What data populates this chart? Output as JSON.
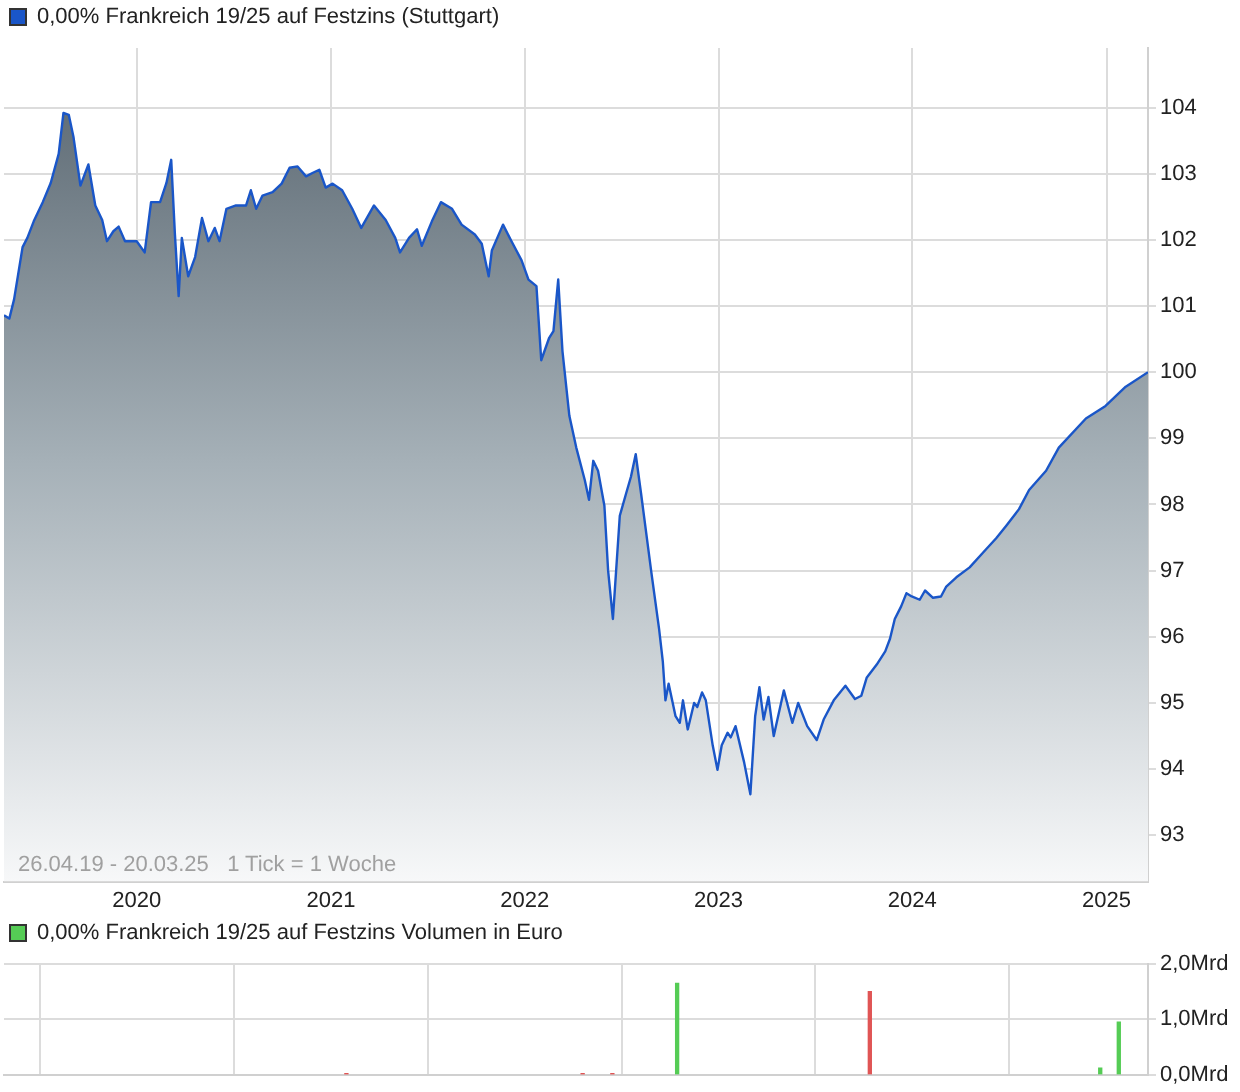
{
  "chart_data": [
    {
      "type": "area",
      "legend": "top left",
      "grid": true,
      "xlim": [
        "2019-04-26",
        "2025-03-20"
      ],
      "ylim": [
        92.3,
        104.9
      ],
      "xticks": [
        {
          "value": "2020-01-01",
          "label": "2020"
        },
        {
          "value": "2021-01-01",
          "label": "2021"
        },
        {
          "value": "2022-01-01",
          "label": "2022"
        },
        {
          "value": "2023-01-01",
          "label": "2023"
        },
        {
          "value": "2024-01-01",
          "label": "2024"
        },
        {
          "value": "2025-01-01",
          "label": "2025"
        }
      ],
      "yticks": [
        93,
        94,
        95,
        96,
        97,
        98,
        99,
        100,
        101,
        102,
        103,
        104
      ],
      "annotations": [
        "26.04.19 - 20.03.25   1 Tick = 1 Woche"
      ],
      "series": [
        {
          "name": "0,00% Frankreich 19/25 auf Festzins (Stuttgart)",
          "color": "#1a56c8",
          "x": [
            "2019-04-26",
            "2019-05-06",
            "2019-05-15",
            "2019-05-31",
            "2019-06-09",
            "2019-06-21",
            "2019-07-08",
            "2019-07-23",
            "2019-08-07",
            "2019-08-16",
            "2019-08-26",
            "2019-09-04",
            "2019-09-17",
            "2019-10-02",
            "2019-10-15",
            "2019-10-28",
            "2019-11-06",
            "2019-11-18",
            "2019-11-28",
            "2019-12-10",
            "2020-01-01",
            "2020-01-16",
            "2020-01-28",
            "2020-02-14",
            "2020-02-26",
            "2020-03-06",
            "2020-03-13",
            "2020-03-20",
            "2020-03-26",
            "2020-04-07",
            "2020-04-20",
            "2020-05-03",
            "2020-05-15",
            "2020-05-27",
            "2020-06-05",
            "2020-06-18",
            "2020-07-06",
            "2020-07-25",
            "2020-08-03",
            "2020-08-13",
            "2020-08-25",
            "2020-09-13",
            "2020-09-30",
            "2020-10-15",
            "2020-10-30",
            "2020-11-15",
            "2020-11-27",
            "2020-12-10",
            "2020-12-22",
            "2021-01-04",
            "2021-01-22",
            "2021-02-10",
            "2021-02-27",
            "2021-03-23",
            "2021-04-14",
            "2021-05-02",
            "2021-05-11",
            "2021-05-28",
            "2021-06-12",
            "2021-06-21",
            "2021-07-10",
            "2021-07-27",
            "2021-08-17",
            "2021-09-04",
            "2021-09-29",
            "2021-10-12",
            "2021-10-25",
            "2021-10-31",
            "2021-11-21",
            "2021-12-07",
            "2021-12-26",
            "2022-01-08",
            "2022-01-23",
            "2022-02-01",
            "2022-02-16",
            "2022-02-24",
            "2022-03-05",
            "2022-03-13",
            "2022-03-26",
            "2022-04-08",
            "2022-04-24",
            "2022-05-02",
            "2022-05-10",
            "2022-05-19",
            "2022-05-31",
            "2022-06-07",
            "2022-06-16",
            "2022-06-29",
            "2022-07-11",
            "2022-07-20",
            "2022-07-29",
            "2022-08-08",
            "2022-08-27",
            "2022-09-11",
            "2022-09-18",
            "2022-09-23",
            "2022-09-29",
            "2022-10-12",
            "2022-10-20",
            "2022-10-26",
            "2022-11-04",
            "2022-11-16",
            "2022-11-22",
            "2022-12-01",
            "2022-12-08",
            "2022-12-21",
            "2022-12-30",
            "2023-01-07",
            "2023-01-18",
            "2023-01-24",
            "2023-02-02",
            "2023-02-18",
            "2023-03-02",
            "2023-03-11",
            "2023-03-19",
            "2023-03-27",
            "2023-04-05",
            "2023-04-15",
            "2023-05-04",
            "2023-05-20",
            "2023-05-31",
            "2023-06-17",
            "2023-07-05",
            "2023-07-18",
            "2023-08-06",
            "2023-08-28",
            "2023-09-15",
            "2023-09-27",
            "2023-10-07",
            "2023-10-26",
            "2023-11-11",
            "2023-11-20",
            "2023-11-29",
            "2023-12-11",
            "2023-12-21",
            "2023-12-31",
            "2024-01-15",
            "2024-01-25",
            "2024-02-09",
            "2024-02-24",
            "2024-03-05",
            "2024-03-24",
            "2024-04-18",
            "2024-05-13",
            "2024-06-07",
            "2024-06-26",
            "2024-07-20",
            "2024-08-08",
            "2024-09-09",
            "2024-10-03",
            "2024-11-23",
            "2024-12-30",
            "2025-02-06",
            "2025-03-20"
          ],
          "values": [
            100.86,
            100.81,
            101.1,
            101.89,
            102.03,
            102.28,
            102.57,
            102.86,
            103.3,
            103.92,
            103.89,
            103.55,
            102.82,
            103.14,
            102.52,
            102.3,
            101.98,
            102.13,
            102.2,
            101.98,
            101.98,
            101.81,
            102.57,
            102.57,
            102.86,
            103.21,
            102.08,
            101.15,
            102.03,
            101.45,
            101.74,
            102.33,
            101.98,
            102.18,
            101.98,
            102.47,
            102.52,
            102.52,
            102.75,
            102.47,
            102.67,
            102.72,
            102.85,
            103.09,
            103.11,
            102.96,
            103.01,
            103.06,
            102.79,
            102.85,
            102.75,
            102.47,
            102.18,
            102.52,
            102.3,
            102.03,
            101.81,
            102.03,
            102.16,
            101.91,
            102.28,
            102.57,
            102.47,
            102.23,
            102.08,
            101.94,
            101.45,
            101.84,
            102.23,
            101.98,
            101.69,
            101.4,
            101.3,
            100.18,
            100.52,
            100.62,
            101.4,
            100.32,
            99.34,
            98.86,
            98.37,
            98.07,
            98.66,
            98.51,
            97.98,
            97.0,
            96.27,
            97.83,
            98.17,
            98.42,
            98.76,
            98.17,
            97.0,
            96.12,
            95.63,
            95.04,
            95.29,
            94.8,
            94.7,
            95.04,
            94.6,
            95.0,
            94.94,
            95.16,
            95.04,
            94.36,
            93.99,
            94.36,
            94.55,
            94.48,
            94.65,
            94.11,
            93.62,
            94.8,
            95.24,
            94.75,
            95.09,
            94.5,
            95.19,
            94.7,
            95.0,
            94.65,
            94.44,
            94.75,
            95.04,
            95.26,
            95.06,
            95.11,
            95.38,
            95.58,
            95.78,
            95.97,
            96.27,
            96.46,
            96.66,
            96.61,
            96.56,
            96.7,
            96.59,
            96.61,
            96.76,
            96.9,
            97.05,
            97.27,
            97.49,
            97.68,
            97.93,
            98.22,
            98.51,
            98.86,
            99.3,
            99.49,
            99.78,
            100.0
          ]
        }
      ]
    },
    {
      "type": "bar",
      "legend": "top left",
      "grid": true,
      "tick_labels": "y",
      "xlim": [
        "2019-04-26",
        "2025-03-20"
      ],
      "ylim": [
        0,
        2
      ],
      "xticks": [
        {
          "value": "2020-01-01",
          "label": null
        },
        {
          "value": "2021-01-01",
          "label": null
        },
        {
          "value": "2022-01-01",
          "label": null
        },
        {
          "value": "2023-01-01",
          "label": null
        },
        {
          "value": "2024-01-01",
          "label": null
        },
        {
          "value": "2025-01-01",
          "label": null
        }
      ],
      "yticks": [
        {
          "value": 0,
          "label": "0,0Mrd"
        },
        {
          "value": 1,
          "label": "1,0Mrd"
        },
        {
          "value": 2,
          "label": "2,0Mrd"
        }
      ],
      "series": [
        {
          "name": "0,00% Frankreich 19/25 auf Festzins Volumen in Euro",
          "color": "#55cc55",
          "x": [
            "2021-01-30",
            "2022-04-20",
            "2022-06-15",
            "2022-10-15",
            "2023-10-13",
            "2024-12-20",
            "2025-01-24"
          ],
          "values": [
            0.02,
            0.02,
            0.02,
            1.65,
            1.5,
            0.12,
            0.95
          ],
          "colors": [
            "#e05555",
            "#e05555",
            "#e05555",
            "#55cc55",
            "#e05555",
            "#55cc55",
            "#55cc55"
          ]
        }
      ]
    }
  ]
}
